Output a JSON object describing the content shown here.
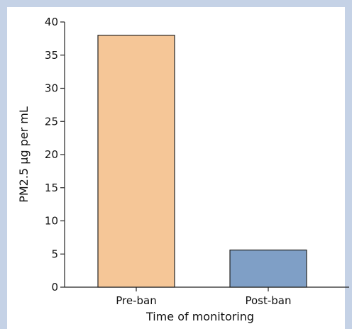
{
  "chart_data": {
    "type": "bar",
    "categories": [
      "Pre-ban",
      "Post-ban"
    ],
    "values": [
      38,
      5.6
    ],
    "xlabel": "Time of monitoring",
    "ylabel": "PM2.5 µg per mL",
    "ylim": [
      0,
      40
    ],
    "yticks": [
      0,
      5,
      10,
      15,
      20,
      25,
      30,
      35,
      40
    ],
    "colors": [
      "#f5c697",
      "#7f9fc6"
    ],
    "grid": false
  }
}
